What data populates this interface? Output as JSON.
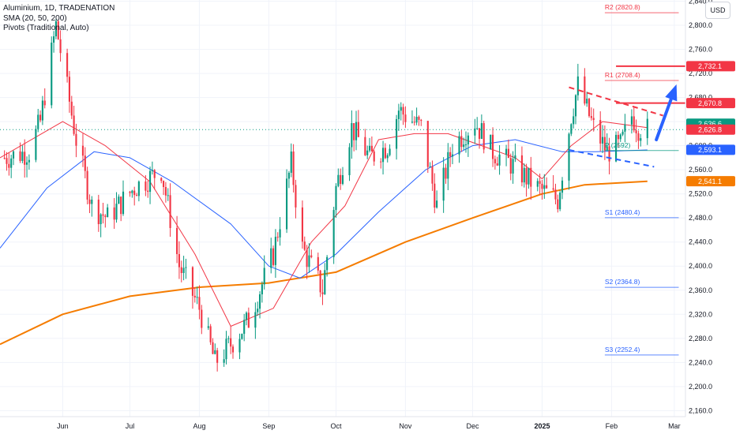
{
  "legend": {
    "title": "Aluminium, 1D, TRADENATION",
    "indicator_sma": "SMA (20, 50, 200)",
    "indicator_pivots": "Pivots (Traditional, Auto)"
  },
  "currency_label": "USD",
  "colors": {
    "up": "#089981",
    "down": "#f23645",
    "sma20": "#f23645",
    "sma50": "#2962ff",
    "sma200": "#f57c00",
    "pivot_resistance": "#f23645",
    "pivot_support": "#2962ff",
    "pivot_p": "#089981",
    "horizontal_line": "#f23645",
    "arrow": "#2962ff"
  },
  "chart_data": {
    "type": "candlestick",
    "title": "Aluminium, 1D, TRADENATION",
    "ylim": [
      2150,
      2842
    ],
    "y_ticks": [
      2160,
      2200,
      2240,
      2280,
      2320,
      2360,
      2400,
      2440,
      2480,
      2520,
      2560,
      2600,
      2640,
      2680,
      2720,
      2760,
      2800,
      2840
    ],
    "y_tick_labels": [
      "2,160.0",
      "2,200.0",
      "2,240.0",
      "2,280.0",
      "2,320.0",
      "2,360.0",
      "2,400.0",
      "2,440.0",
      "2,480.0",
      "2,520.0",
      "2,560.0",
      "2,600.0",
      "2,640.0",
      "2,680.0",
      "2,720.0",
      "2,760.0",
      "2,800.0",
      "2,840.0"
    ],
    "x_range": [
      "2024-05-04",
      "2025-03-06"
    ],
    "x_labels": [
      {
        "date": "2024-06-01",
        "text": "Jun"
      },
      {
        "date": "2024-07-01",
        "text": "Jul"
      },
      {
        "date": "2024-08-01",
        "text": "Aug"
      },
      {
        "date": "2024-09-01",
        "text": "Sep"
      },
      {
        "date": "2024-10-01",
        "text": "Oct"
      },
      {
        "date": "2024-11-01",
        "text": "Nov"
      },
      {
        "date": "2024-12-01",
        "text": "Dec"
      },
      {
        "date": "2025-01-01",
        "text": "2025"
      },
      {
        "date": "2025-02-01",
        "text": "Feb"
      },
      {
        "date": "2025-03-01",
        "text": "Mar"
      }
    ],
    "price_path_date": [
      "2024-05-06",
      "2024-05-17",
      "2024-05-22",
      "2024-05-29",
      "2024-06-07",
      "2024-06-14",
      "2024-06-21",
      "2024-07-03",
      "2024-07-15",
      "2024-07-23",
      "2024-08-01",
      "2024-08-08",
      "2024-08-15",
      "2024-08-23",
      "2024-09-03",
      "2024-09-11",
      "2024-09-16",
      "2024-09-25",
      "2024-10-01",
      "2024-10-08",
      "2024-10-16",
      "2024-10-24",
      "2024-10-29",
      "2024-11-01",
      "2024-11-08",
      "2024-11-15",
      "2024-11-22",
      "2024-12-02",
      "2024-12-10",
      "2024-12-18",
      "2024-12-30",
      "2025-01-08",
      "2025-01-14",
      "2025-01-17",
      "2025-01-24",
      "2025-01-30",
      "2025-02-05",
      "2025-02-10",
      "2025-02-13",
      "2025-02-17"
    ],
    "price_path_close": [
      2580,
      2590,
      2640,
      2800,
      2610,
      2500,
      2480,
      2530,
      2560,
      2400,
      2330,
      2240,
      2270,
      2310,
      2420,
      2570,
      2430,
      2360,
      2530,
      2630,
      2580,
      2600,
      2660,
      2650,
      2630,
      2500,
      2600,
      2640,
      2590,
      2570,
      2530,
      2510,
      2650,
      2700,
      2630,
      2590,
      2600,
      2650,
      2630,
      2627
    ],
    "sma_20_date": [
      "2024-05-04",
      "2024-06-01",
      "2024-06-20",
      "2024-07-10",
      "2024-07-30",
      "2024-08-15",
      "2024-09-03",
      "2024-09-20",
      "2024-10-05",
      "2024-10-20",
      "2024-11-05",
      "2024-11-20",
      "2024-12-05",
      "2024-12-20",
      "2025-01-01",
      "2025-01-14",
      "2025-01-28",
      "2025-02-17"
    ],
    "sma_20_value": [
      2580,
      2640,
      2600,
      2540,
      2420,
      2300,
      2330,
      2440,
      2500,
      2610,
      2620,
      2620,
      2600,
      2580,
      2545,
      2600,
      2640,
      2630
    ],
    "sma_50_date": [
      "2024-05-04",
      "2024-05-25",
      "2024-06-15",
      "2024-07-01",
      "2024-07-20",
      "2024-08-15",
      "2024-09-01",
      "2024-09-15",
      "2024-10-01",
      "2024-10-20",
      "2024-11-10",
      "2024-12-01",
      "2024-12-20",
      "2025-01-10",
      "2025-01-25",
      "2025-02-17"
    ],
    "sma_50_value": [
      2430,
      2530,
      2590,
      2580,
      2540,
      2470,
      2400,
      2380,
      2420,
      2490,
      2560,
      2600,
      2610,
      2590,
      2590,
      2593
    ],
    "sma_200_date": [
      "2024-05-04",
      "2024-06-01",
      "2024-07-01",
      "2024-08-01",
      "2024-09-01",
      "2024-10-01",
      "2024-11-01",
      "2024-12-01",
      "2025-01-01",
      "2025-01-20",
      "2025-02-17"
    ],
    "sma_200_value": [
      2270,
      2320,
      2350,
      2365,
      2372,
      2390,
      2440,
      2480,
      2520,
      2535,
      2541
    ],
    "pivots": [
      {
        "label": "R2 (2820.8)",
        "value": 2820.8,
        "kind": "resistance"
      },
      {
        "label": "R1 (2708.4)",
        "value": 2708.4,
        "kind": "resistance"
      },
      {
        "label": "P (2592)",
        "value": 2592,
        "kind": "pivot"
      },
      {
        "label": "S1 (2480.4)",
        "value": 2480.4,
        "kind": "support"
      },
      {
        "label": "S2 (2364.8)",
        "value": 2364.8,
        "kind": "support"
      },
      {
        "label": "S3 (2252.4)",
        "value": 2252.4,
        "kind": "support"
      }
    ],
    "pivot_start_date": "2025-01-29",
    "pivot_end_date": "2025-03-03",
    "horizontal_levels": [
      {
        "value": 2732.1,
        "start_date": "2025-02-03"
      },
      {
        "value": 2670.8,
        "start_date": "2025-02-03"
      }
    ],
    "trendlines": [
      {
        "name": "resistance",
        "from": [
          "2025-01-13",
          2697
        ],
        "to": [
          "2025-02-24",
          2650
        ],
        "style": "dashed",
        "color": "#f23645"
      },
      {
        "name": "support",
        "from": [
          "2025-01-13",
          2593
        ],
        "to": [
          "2025-02-20",
          2565
        ],
        "style": "dashed",
        "color": "#2962ff"
      }
    ],
    "arrow": {
      "from": [
        "2025-02-21",
        2610
      ],
      "to": [
        "2025-03-02",
        2702
      ]
    },
    "last_close": 2626.8,
    "price_badges": [
      {
        "text": "2,732.1",
        "value": 2732.1,
        "color": "#f23645"
      },
      {
        "text": "2,670.8",
        "value": 2670.8,
        "color": "#f23645"
      },
      {
        "text": "2,636.6",
        "value": 2636.6,
        "color": "#089981"
      },
      {
        "text": "2,626.8",
        "value": 2626.8,
        "color": "#f23645"
      },
      {
        "text": "2,593.1",
        "value": 2593.1,
        "color": "#2962ff"
      },
      {
        "text": "2,541.1",
        "value": 2541.1,
        "color": "#f57c00"
      }
    ]
  }
}
